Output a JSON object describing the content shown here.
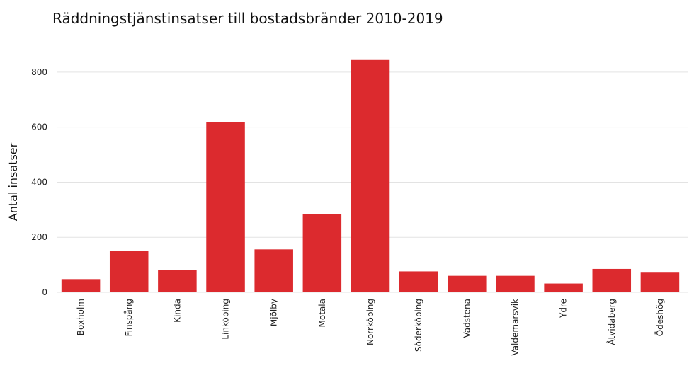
{
  "chart_data": {
    "type": "bar",
    "title": "Räddningstjänstinsatser till bostadsbränder 2010-2019",
    "xlabel": "",
    "ylabel": "Antal insatser",
    "categories": [
      "Boxholm",
      "Finspång",
      "Kinda",
      "Linköping",
      "Mjölby",
      "Motala",
      "Norrköping",
      "Söderköping",
      "Vadstena",
      "Valdemarsvik",
      "Ydre",
      "Åtvidaberg",
      "Ödeshög"
    ],
    "values": [
      48,
      151,
      82,
      618,
      156,
      285,
      844,
      76,
      60,
      60,
      32,
      85,
      74
    ],
    "ylim": [
      0,
      900
    ],
    "yticks": [
      0,
      200,
      400,
      600,
      800
    ],
    "bar_color": "#dc2a2e",
    "grid": true,
    "legend": "none"
  }
}
